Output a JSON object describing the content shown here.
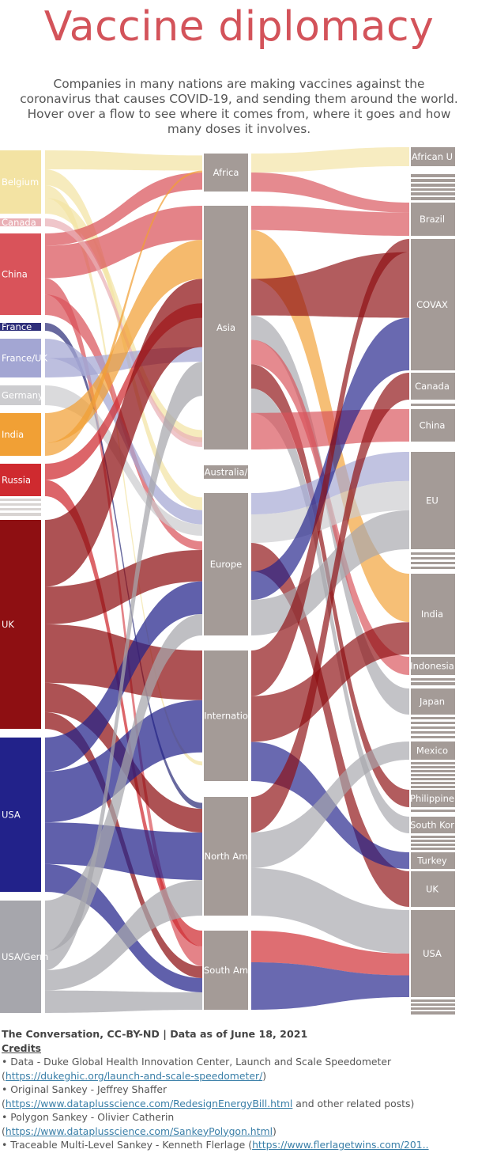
{
  "title": "Vaccine diplomacy",
  "subtitle_lines": [
    "Companies in many nations are making vaccines against the",
    "coronavirus that causes COVID-19, and sending them around the world.",
    "Hover over a flow to see where it comes from, where it goes and how",
    "many doses it involves."
  ],
  "colors": {
    "Belgium": "#f3e3a3",
    "Canada": "#e9b0b6",
    "China": "#d9535a",
    "France": "#2e2f7a",
    "France/UK": "#a3a6d3",
    "Germany": "#cccccf",
    "India": "#f1a035",
    "Russia": "#cf2a2f",
    "UK": "#8e0f12",
    "USA": "#22228a",
    "USA/Germany": "#a6a6ac",
    "region": "#a49b97",
    "recipient": "#a49b97"
  },
  "sources": [
    {
      "label": "Belgium",
      "display": "Belgium",
      "color": "Belgium"
    },
    {
      "label": "Canada",
      "display": "Canada",
      "color": "Canada"
    },
    {
      "label": "China",
      "display": "China",
      "color": "China"
    },
    {
      "label": "France",
      "display": "France",
      "color": "France"
    },
    {
      "label": "France/UK",
      "display": "France/UK",
      "color": "France/UK"
    },
    {
      "label": "Germany",
      "display": "Germany",
      "color": "Germany"
    },
    {
      "label": "India",
      "display": "India",
      "color": "India"
    },
    {
      "label": "Russia",
      "display": "Russia",
      "color": "Russia"
    },
    {
      "label": "UK",
      "display": "UK",
      "color": "UK"
    },
    {
      "label": "USA",
      "display": "USA",
      "color": "USA"
    },
    {
      "label": "USA/Germany",
      "display": "USA/Germ",
      "color": "USA/Germany"
    }
  ],
  "regions": [
    {
      "label": "Africa",
      "display": "Africa"
    },
    {
      "label": "Asia",
      "display": "Asia"
    },
    {
      "label": "Australia/Oceania",
      "display": "Australia/"
    },
    {
      "label": "Europe",
      "display": "Europe"
    },
    {
      "label": "International",
      "display": "Internatio"
    },
    {
      "label": "North America",
      "display": "North Am"
    },
    {
      "label": "South America",
      "display": "South Am"
    }
  ],
  "recipients": [
    {
      "label": "African Union",
      "display": "African U"
    },
    {
      "label": "Brazil",
      "display": "Brazil"
    },
    {
      "label": "COVAX",
      "display": "COVAX"
    },
    {
      "label": "Canada",
      "display": "Canada"
    },
    {
      "label": "China",
      "display": "China"
    },
    {
      "label": "EU",
      "display": "EU"
    },
    {
      "label": "India",
      "display": "India"
    },
    {
      "label": "Indonesia",
      "display": "Indonesia"
    },
    {
      "label": "Japan",
      "display": "Japan"
    },
    {
      "label": "Mexico",
      "display": "Mexico"
    },
    {
      "label": "Philippines",
      "display": "Philippine"
    },
    {
      "label": "South Korea",
      "display": "South Kor"
    },
    {
      "label": "Turkey",
      "display": "Turkey"
    },
    {
      "label": "UK",
      "display": "UK"
    },
    {
      "label": "USA",
      "display": "USA"
    }
  ],
  "credits": {
    "byline": "The Conversation, CC-BY-ND | Data as of June 18, 2021",
    "heading": "Credits",
    "items": [
      {
        "prefix": "• Data - Duke Global Health Innovation Center, Launch and Scale Speedometer",
        "open": "(",
        "link": "https://dukeghic.org/launch-and-scale-speedometer/",
        "close": ")",
        "suffix": ""
      },
      {
        "prefix": "• Original Sankey - Jeffrey Shaffer",
        "open": "(",
        "link": "https://www.dataplusscience.com/RedesignEnergyBill.html",
        "close": "",
        "suffix": " and other related posts)"
      },
      {
        "prefix": "• Polygon Sankey - Olivier Catherin",
        "open": "(",
        "link": "https://www.dataplusscience.com/SankeyPolygon.html",
        "close": ")",
        "suffix": ""
      },
      {
        "prefix": "• Traceable Multi-Level Sankey - Kenneth Flerlage",
        "open": "(",
        "link": "https://www.flerlagetwins.com/201..",
        "close": "",
        "suffix": ""
      }
    ]
  }
}
